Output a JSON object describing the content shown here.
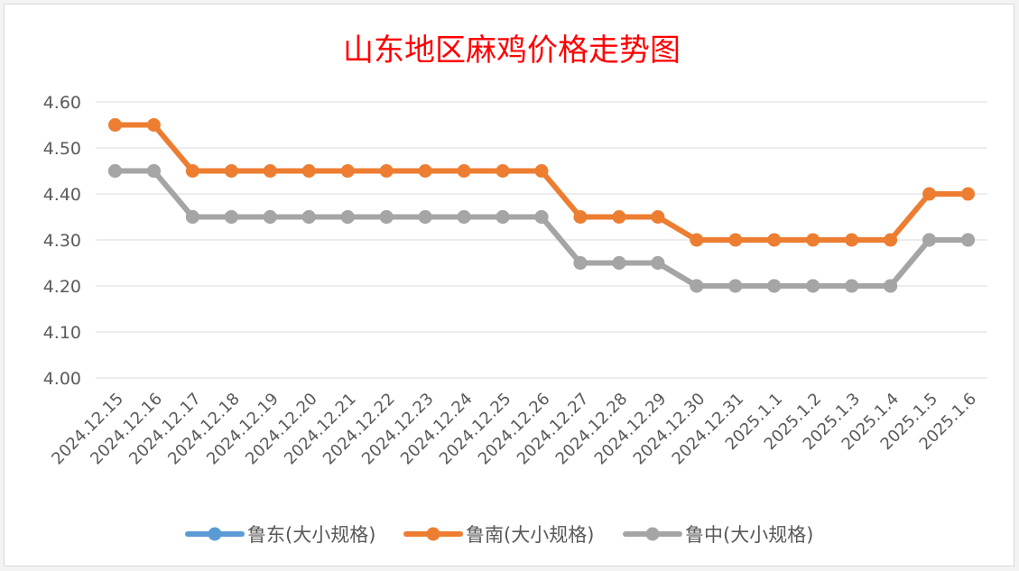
{
  "chart_data": {
    "type": "line",
    "title": "山东地区麻鸡价格走势图",
    "categories": [
      "2024.12.15",
      "2024.12.16",
      "2024.12.17",
      "2024.12.18",
      "2024.12.19",
      "2024.12.20",
      "2024.12.21",
      "2024.12.22",
      "2024.12.23",
      "2024.12.24",
      "2024.12.25",
      "2024.12.26",
      "2024.12.27",
      "2024.12.28",
      "2024.12.29",
      "2024.12.30",
      "2024.12.31",
      "2025.1.1",
      "2025.1.2",
      "2025.1.3",
      "2025.1.4",
      "2025.1.5",
      "2025.1.6"
    ],
    "ylim": [
      4.0,
      4.6
    ],
    "yticks": [
      "4.00",
      "4.10",
      "4.20",
      "4.30",
      "4.40",
      "4.50",
      "4.60"
    ],
    "grid": true,
    "legend_position": "bottom",
    "series": [
      {
        "name": "鲁东(大小规格)",
        "color": "#5b9bd5",
        "values": [
          4.45,
          4.45,
          4.35,
          4.35,
          4.35,
          4.35,
          4.35,
          4.35,
          4.35,
          4.35,
          4.35,
          4.35,
          4.25,
          4.25,
          4.25,
          4.2,
          4.2,
          4.2,
          4.2,
          4.2,
          4.2,
          4.3,
          4.3
        ]
      },
      {
        "name": "鲁南(大小规格)",
        "color": "#ed7d31",
        "values": [
          4.55,
          4.55,
          4.45,
          4.45,
          4.45,
          4.45,
          4.45,
          4.45,
          4.45,
          4.45,
          4.45,
          4.45,
          4.35,
          4.35,
          4.35,
          4.3,
          4.3,
          4.3,
          4.3,
          4.3,
          4.3,
          4.4,
          4.4
        ]
      },
      {
        "name": "鲁中(大小规格)",
        "color": "#a5a5a5",
        "values": [
          4.45,
          4.45,
          4.35,
          4.35,
          4.35,
          4.35,
          4.35,
          4.35,
          4.35,
          4.35,
          4.35,
          4.35,
          4.25,
          4.25,
          4.25,
          4.2,
          4.2,
          4.2,
          4.2,
          4.2,
          4.2,
          4.3,
          4.3
        ]
      }
    ],
    "title_color": "#ff0000"
  }
}
